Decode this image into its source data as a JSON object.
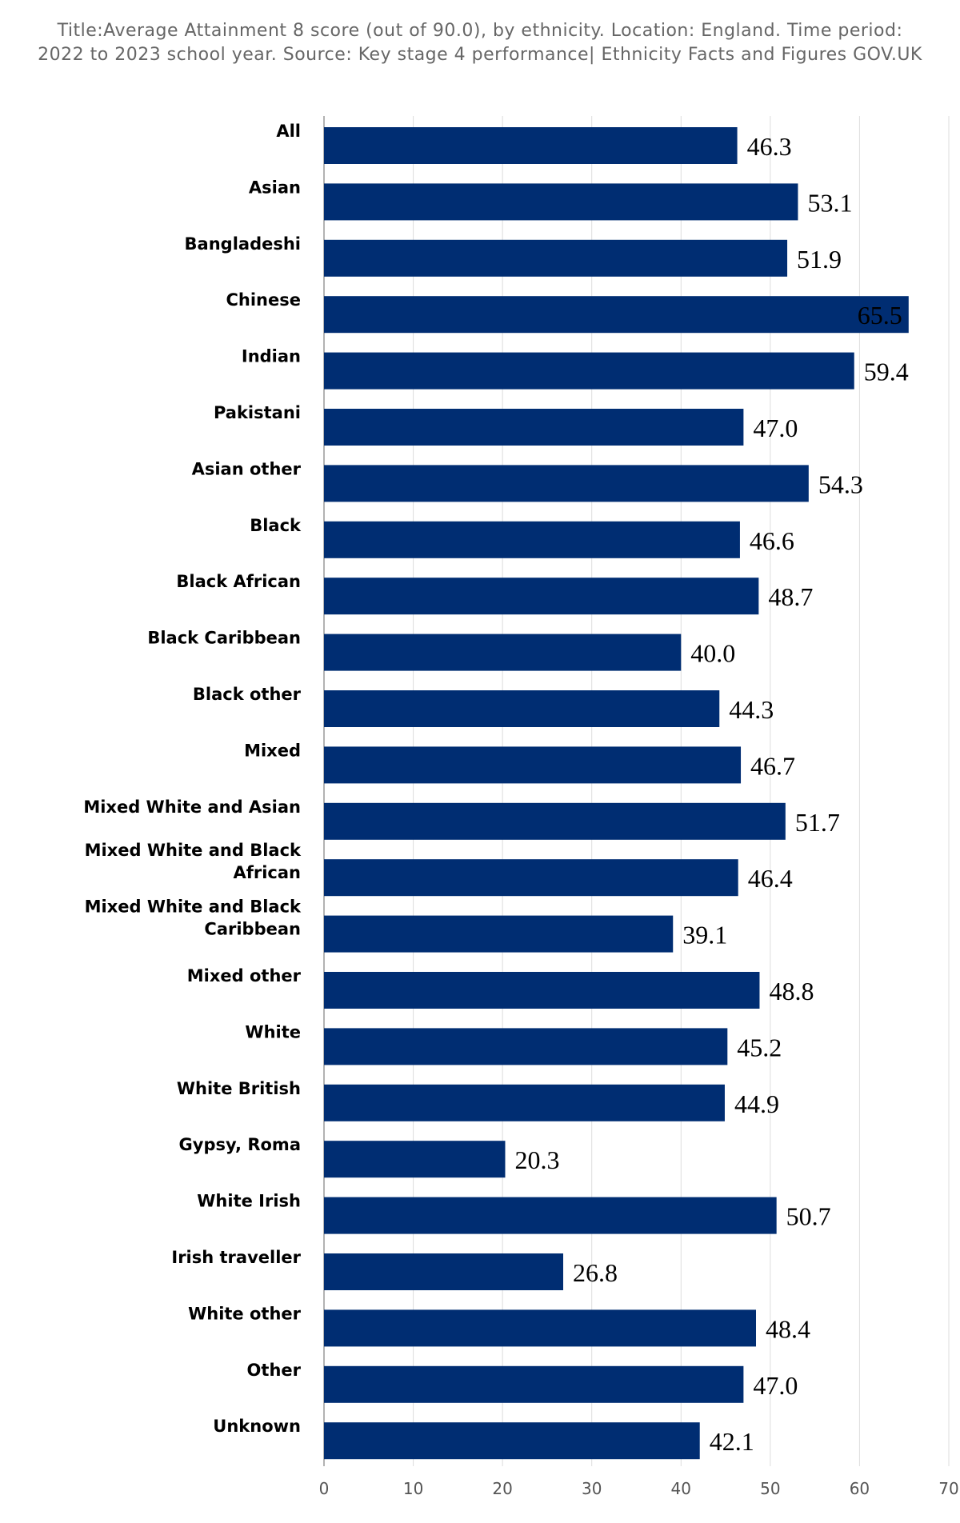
{
  "chart_data": {
    "type": "bar",
    "orientation": "horizontal",
    "title": "Title:Average Attainment 8 score (out of 90.0), by ethnicity. Location: England. Time period: 2022 to 2023 school year. Source: Key stage 4 performance| Ethnicity Facts and Figures GOV.UK",
    "categories": [
      "All",
      "Asian",
      "Bangladeshi",
      "Chinese",
      "Indian",
      "Pakistani",
      "Asian other",
      "Black",
      "Black African",
      "Black Caribbean",
      "Black other",
      "Mixed",
      "Mixed White and Asian",
      "Mixed White and Black African",
      "Mixed White and Black Caribbean",
      "Mixed other",
      "White",
      "White British",
      "Gypsy, Roma",
      "White Irish",
      "Irish traveller",
      "White other",
      "Other",
      "Unknown"
    ],
    "values": [
      46.3,
      53.1,
      51.9,
      65.5,
      59.4,
      47.0,
      54.3,
      46.6,
      48.7,
      40.0,
      44.3,
      46.7,
      51.7,
      46.4,
      39.1,
      48.8,
      45.2,
      44.9,
      20.3,
      50.7,
      26.8,
      48.4,
      47.0,
      42.1
    ],
    "value_labels": [
      "46.3",
      "53.1",
      "51.9",
      "65.5",
      "59.4",
      "47.0",
      "54.3",
      "46.6",
      "48.7",
      "40.0",
      "44.3",
      "46.7",
      "51.7",
      "46.4",
      "39.1",
      "48.8",
      "45.2",
      "44.9",
      "20.3",
      "50.7",
      "26.8",
      "48.4",
      "47.0",
      "42.1"
    ],
    "xticks": [
      "0",
      "10",
      "20",
      "30",
      "40",
      "50",
      "60",
      "70"
    ],
    "xlim": [
      0,
      70
    ],
    "xlabel": "",
    "ylabel": "",
    "grid": true,
    "legend": "none",
    "colors": {
      "bar": "#002D72",
      "grid": "#dddddd",
      "axis": "#999999"
    }
  }
}
